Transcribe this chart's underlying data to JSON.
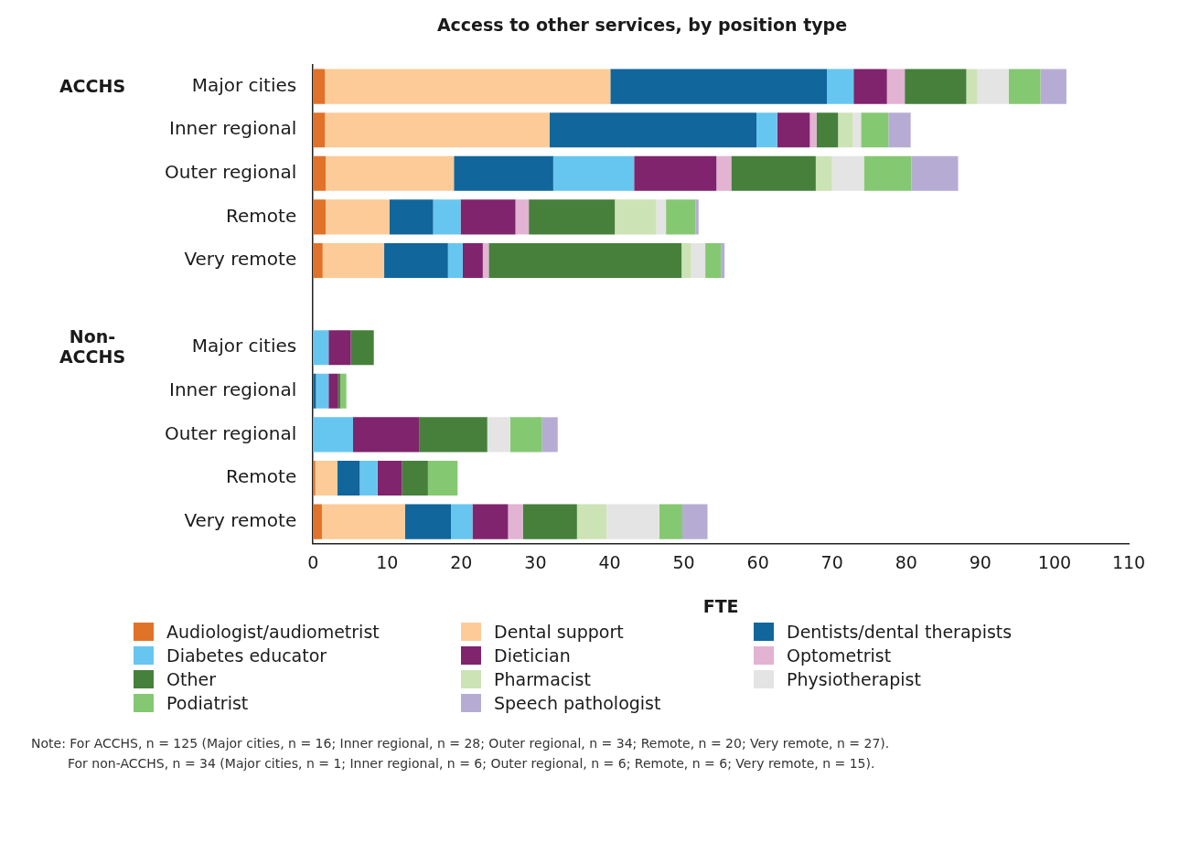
{
  "chart_data": {
    "type": "bar",
    "orientation": "horizontal",
    "stacked": true,
    "title": "Access to other services, by position type",
    "xlabel": "FTE",
    "categories": [
      "Major cities",
      "Inner regional",
      "Outer regional",
      "Remote",
      "Very remote",
      null,
      "Major cities",
      "Inner regional",
      "Outer regional",
      "Remote",
      "Very remote"
    ],
    "xlim": [
      0,
      110
    ],
    "xticks": [
      0,
      10,
      20,
      30,
      40,
      50,
      60,
      70,
      80,
      90,
      100,
      110
    ],
    "grid": false,
    "legend": "bottom",
    "series": [
      {
        "name": "Audiologist/audiometrist",
        "color": "#e07229",
        "values": [
          1.6,
          1.6,
          1.7,
          1.7,
          1.3,
          null,
          0,
          0,
          0,
          0.3,
          1.2
        ]
      },
      {
        "name": "Dental support",
        "color": "#fdcb98",
        "values": [
          38.5,
          30.3,
          17.3,
          8.6,
          8.3,
          null,
          0,
          0,
          0,
          3.0,
          11.2
        ]
      },
      {
        "name": "Dentists/dental therapists",
        "color": "#11669b",
        "values": [
          29.2,
          27.9,
          13.4,
          5.9,
          8.6,
          null,
          0,
          0.4,
          0,
          3.0,
          6.2
        ]
      },
      {
        "name": "Diabetes educator",
        "color": "#67c6f0",
        "values": [
          3.6,
          2.8,
          10.9,
          3.7,
          2.0,
          null,
          2.1,
          1.7,
          5.4,
          2.4,
          2.9
        ]
      },
      {
        "name": "Dietician",
        "color": "#7f246d",
        "values": [
          4.5,
          4.4,
          11.1,
          7.4,
          2.7,
          null,
          3.0,
          1.3,
          8.9,
          3.3,
          4.8
        ]
      },
      {
        "name": "Optometrist",
        "color": "#e2b3d2",
        "values": [
          2.4,
          0.9,
          2.0,
          1.8,
          0.8,
          null,
          0,
          0,
          0,
          0,
          2.0
        ]
      },
      {
        "name": "Other",
        "color": "#46803b",
        "values": [
          8.3,
          2.9,
          11.4,
          11.6,
          26.0,
          null,
          3.1,
          0.3,
          9.2,
          3.5,
          7.3
        ]
      },
      {
        "name": "Pharmacist",
        "color": "#cce3b5",
        "values": [
          1.5,
          2.0,
          2.2,
          5.6,
          1.3,
          null,
          0,
          0,
          0,
          0,
          4.0
        ]
      },
      {
        "name": "Physiotherapist",
        "color": "#e4e4e4",
        "values": [
          4.2,
          1.1,
          4.3,
          1.3,
          1.9,
          null,
          0,
          0,
          3.1,
          0,
          7.1
        ]
      },
      {
        "name": "Podiatrist",
        "color": "#85c872",
        "values": [
          4.3,
          3.7,
          6.4,
          4.0,
          2.1,
          null,
          0,
          0.8,
          4.3,
          4.0,
          3.1
        ]
      },
      {
        "name": "Speech pathologist",
        "color": "#b6acd3",
        "values": [
          3.5,
          3.0,
          6.3,
          0.4,
          0.5,
          null,
          0,
          0,
          2.1,
          0,
          3.4
        ]
      }
    ],
    "annotations": [
      "ACCHS",
      "Non-ACCHS",
      "Note: For ACCHS, n = 125 (Major cities, n = 16; Inner regional, n = 28; Outer regional, n = 34; Remote, n = 20; Very remote, n = 27).",
      "For non-ACCHS, n = 34 (Major cities, n = 1; Inner regional, n = 6; Outer regional, n = 6; Remote, n = 6; Very remote, n = 15)."
    ]
  }
}
